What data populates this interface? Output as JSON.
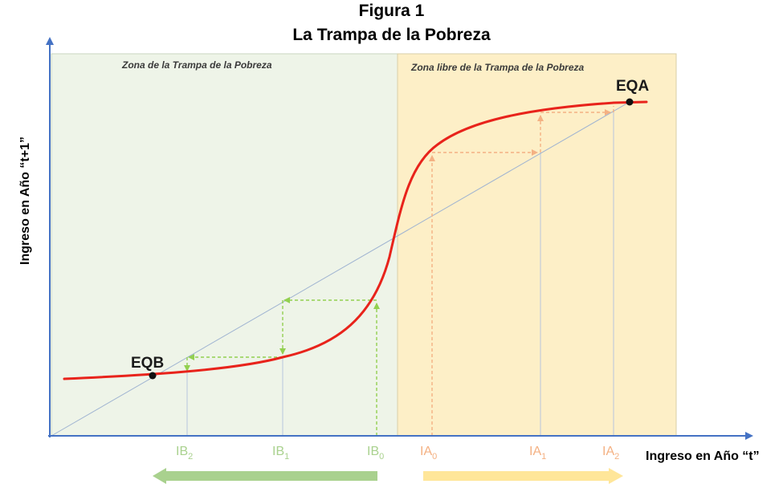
{
  "header": {
    "figure_label": "Figura 1",
    "title": "La Trampa de la Pobreza"
  },
  "zones": {
    "trap": {
      "label": "Zona de la Trampa de la Pobreza",
      "color": "#eef4e8"
    },
    "free": {
      "label": "Zona libre de la Trampa de la Pobreza",
      "color": "#fdefc7"
    }
  },
  "axes": {
    "x_label": "Ingreso en Año “t”",
    "y_label": "Ingreso en Año “t+1”",
    "color": "#4472c4"
  },
  "equilibria": {
    "low": {
      "label": "EQB"
    },
    "high": {
      "label": "EQA"
    }
  },
  "ticks": {
    "poor": [
      {
        "base": "IB",
        "sub": "2"
      },
      {
        "base": "IB",
        "sub": "1"
      },
      {
        "base": "IB",
        "sub": "0"
      }
    ],
    "rich": [
      {
        "base": "IA",
        "sub": "0"
      },
      {
        "base": "IA",
        "sub": "1"
      },
      {
        "base": "IA",
        "sub": "2"
      }
    ]
  },
  "colors": {
    "curve": "#e8231b",
    "diagonal": "#9fb3d1",
    "poor_path": "#92d050",
    "rich_path": "#f4b183",
    "poor_arrow": "#a9d18e",
    "rich_arrow": "#ffe699"
  }
}
